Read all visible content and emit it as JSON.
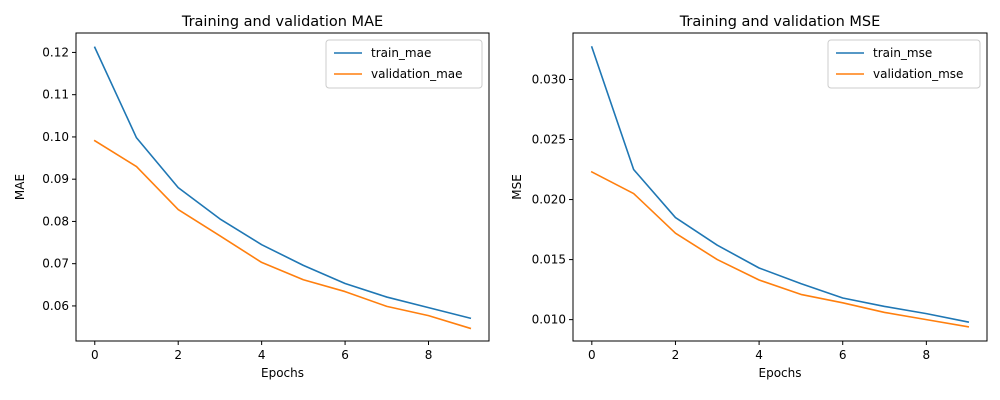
{
  "chart_data": [
    {
      "type": "line",
      "title": "Training and validation MAE",
      "xlabel": "Epochs",
      "ylabel": "MAE",
      "x": [
        0,
        1,
        2,
        3,
        4,
        5,
        6,
        7,
        8,
        9
      ],
      "xlim": [
        -0.45,
        9.45
      ],
      "ylim": [
        0.0517,
        0.1246
      ],
      "xticks": [
        0,
        2,
        4,
        6,
        8
      ],
      "yticks": [
        0.06,
        0.07,
        0.08,
        0.09,
        0.1,
        0.11,
        0.12
      ],
      "ytick_labels": [
        "0.06",
        "0.07",
        "0.08",
        "0.09",
        "0.10",
        "0.11",
        "0.12"
      ],
      "grid": false,
      "legend": "top-right",
      "series": [
        {
          "name": "train_mae",
          "color": "#1f77b4",
          "values": [
            0.1212,
            0.0998,
            0.088,
            0.0806,
            0.0745,
            0.0696,
            0.0653,
            0.0621,
            0.0596,
            0.0571
          ]
        },
        {
          "name": "validation_mae",
          "color": "#ff7f0e",
          "values": [
            0.0991,
            0.093,
            0.0828,
            0.0766,
            0.0703,
            0.0662,
            0.0634,
            0.0599,
            0.0577,
            0.0547
          ]
        }
      ]
    },
    {
      "type": "line",
      "title": "Training and validation MSE",
      "xlabel": "Epochs",
      "ylabel": "MSE",
      "x": [
        0,
        1,
        2,
        3,
        4,
        5,
        6,
        7,
        8,
        9
      ],
      "xlim": [
        -0.45,
        9.45
      ],
      "ylim": [
        0.00822,
        0.03387
      ],
      "xticks": [
        0,
        2,
        4,
        6,
        8
      ],
      "yticks": [
        0.01,
        0.015,
        0.02,
        0.025,
        0.03
      ],
      "ytick_labels": [
        "0.010",
        "0.015",
        "0.020",
        "0.025",
        "0.030"
      ],
      "grid": false,
      "legend": "top-right",
      "series": [
        {
          "name": "train_mse",
          "color": "#1f77b4",
          "values": [
            0.0327,
            0.0225,
            0.0185,
            0.0162,
            0.0143,
            0.013,
            0.0118,
            0.0111,
            0.0105,
            0.0098
          ]
        },
        {
          "name": "validation_mse",
          "color": "#ff7f0e",
          "values": [
            0.0223,
            0.0205,
            0.0172,
            0.015,
            0.0133,
            0.0121,
            0.0114,
            0.0106,
            0.01,
            0.0094
          ]
        }
      ]
    }
  ]
}
